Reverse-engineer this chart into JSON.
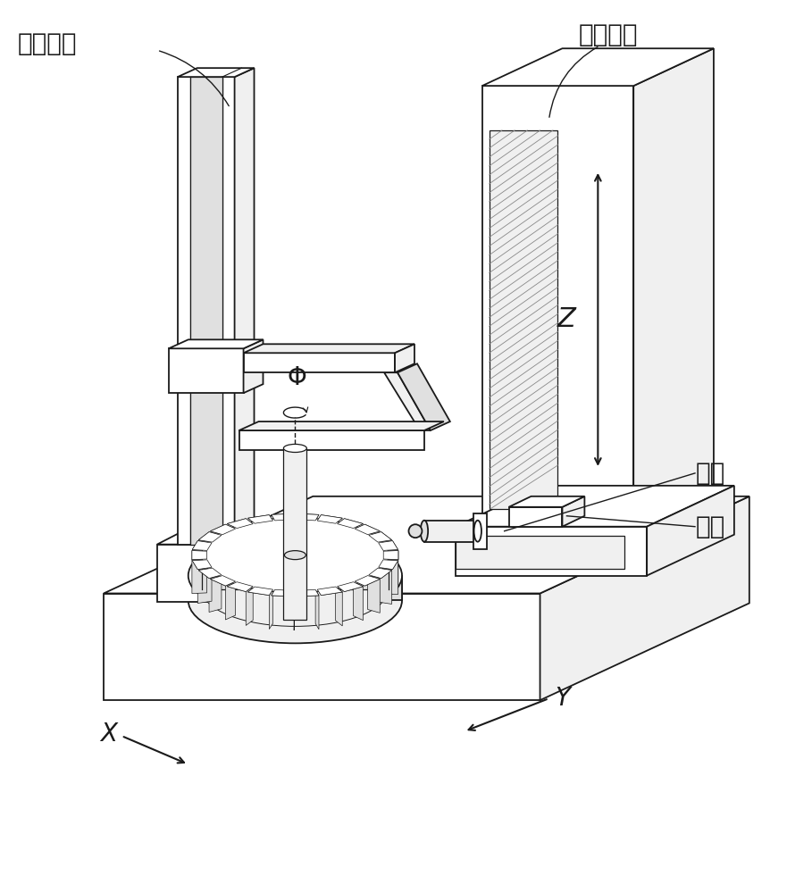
{
  "background_color": "#ffffff",
  "line_color": "#1a1a1a",
  "line_width": 1.3,
  "fill_white": "#ffffff",
  "fill_light": "#f0f0f0",
  "fill_mid": "#e0e0e0",
  "fill_dark": "#c8c8c8",
  "fill_hatch": "#d8d8d8",
  "labels": {
    "workpiece_column": "工件立柱",
    "measurement_column": "测量立柱",
    "probe": "测头",
    "workpiece": "工件",
    "phi": "Φ",
    "Z": "Z",
    "X": "X",
    "Y": "Y"
  },
  "font_size_labels": 20,
  "font_size_axis": 18
}
